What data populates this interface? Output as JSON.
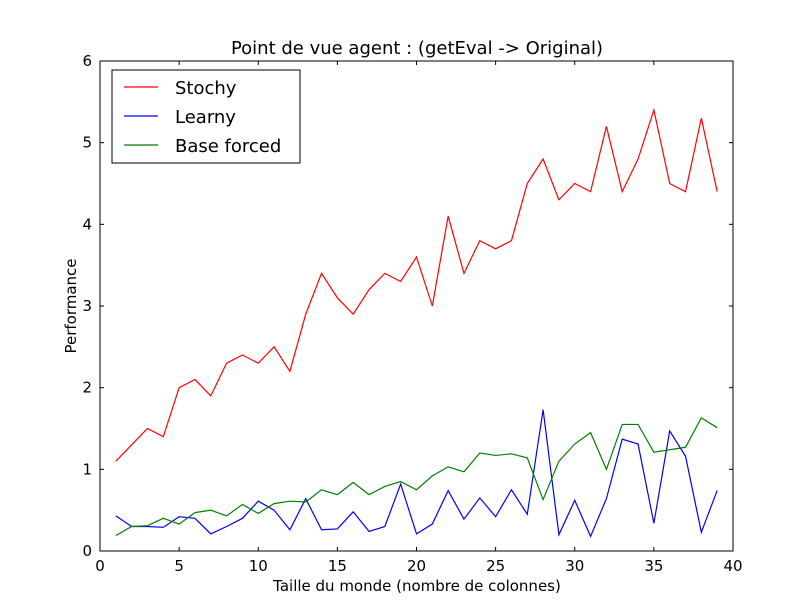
{
  "chart_data": {
    "type": "line",
    "title": "Point de vue agent : (getEval -> Original)",
    "xlabel": "Taille du monde (nombre de colonnes)",
    "ylabel": "Performance",
    "xlim": [
      0,
      40
    ],
    "ylim": [
      0,
      6
    ],
    "xticks": [
      "0",
      "5",
      "10",
      "15",
      "20",
      "25",
      "30",
      "35",
      "40"
    ],
    "yticks": [
      "0",
      "1",
      "2",
      "3",
      "4",
      "5",
      "6"
    ],
    "grid": false,
    "legend_position": "top-left",
    "x": [
      1,
      2,
      3,
      4,
      5,
      6,
      7,
      8,
      9,
      10,
      11,
      12,
      13,
      14,
      15,
      16,
      17,
      18,
      19,
      20,
      21,
      22,
      23,
      24,
      25,
      26,
      27,
      28,
      29,
      30,
      31,
      32,
      33,
      34,
      35,
      36,
      37,
      38,
      39
    ],
    "series": [
      {
        "name": "Stochy",
        "color": "#ff0000",
        "values": [
          1.1,
          1.3,
          1.5,
          1.4,
          2.0,
          2.1,
          1.9,
          2.3,
          2.4,
          2.3,
          2.5,
          2.2,
          2.9,
          3.4,
          3.1,
          2.9,
          3.2,
          3.4,
          3.3,
          3.6,
          3.0,
          4.1,
          3.4,
          3.8,
          3.7,
          3.8,
          4.5,
          4.8,
          4.3,
          4.5,
          4.4,
          5.2,
          4.4,
          4.8,
          5.4,
          4.5,
          4.4,
          5.3,
          4.4
        ]
      },
      {
        "name": "Learny",
        "color": "#0000ff",
        "values": [
          0.43,
          0.3,
          0.3,
          0.29,
          0.42,
          0.4,
          0.21,
          0.3,
          0.4,
          0.61,
          0.5,
          0.26,
          0.64,
          0.26,
          0.27,
          0.48,
          0.24,
          0.3,
          0.82,
          0.21,
          0.33,
          0.74,
          0.39,
          0.65,
          0.42,
          0.75,
          0.45,
          1.73,
          0.2,
          0.62,
          0.18,
          0.64,
          1.37,
          1.31,
          0.34,
          1.47,
          1.16,
          0.23,
          0.74
        ]
      },
      {
        "name": "Base forced",
        "color": "#008000",
        "values": [
          0.19,
          0.3,
          0.31,
          0.4,
          0.33,
          0.47,
          0.5,
          0.43,
          0.57,
          0.46,
          0.58,
          0.61,
          0.6,
          0.75,
          0.69,
          0.84,
          0.69,
          0.79,
          0.85,
          0.75,
          0.92,
          1.03,
          0.97,
          1.2,
          1.17,
          1.19,
          1.14,
          0.63,
          1.1,
          1.31,
          1.45,
          1.0,
          1.55,
          1.55,
          1.21,
          1.24,
          1.27,
          1.63,
          1.51
        ]
      }
    ]
  }
}
